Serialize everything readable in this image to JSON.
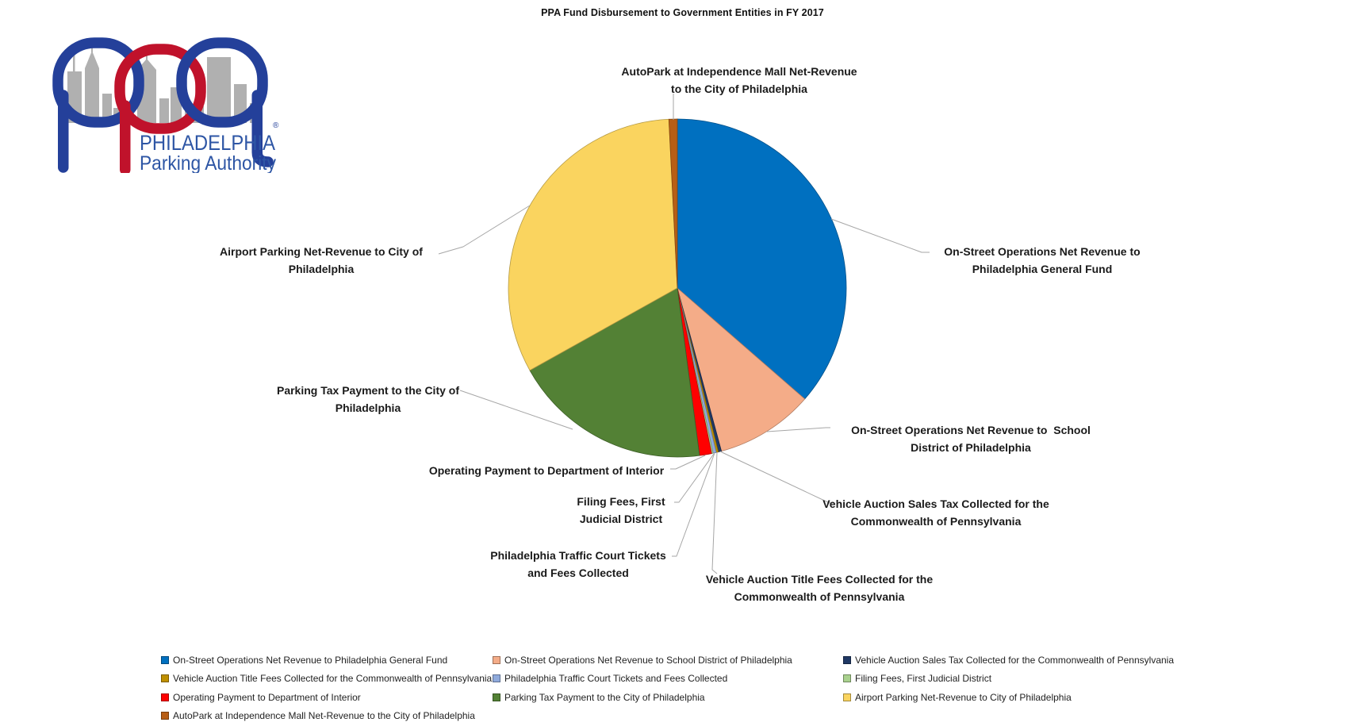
{
  "title": "PPA Fund Disbursement to Government Entities in FY 2017",
  "logo": {
    "org_name_line1": "PHILADELPHIA",
    "org_name_line2": "Parking Authority",
    "registered_mark": "®",
    "colors": {
      "loop_blue": "#24409A",
      "loop_red": "#C0122B",
      "skyline_gray": "#B0B0B0",
      "text_blue": "#2E56A5"
    }
  },
  "chart_data": {
    "type": "pie",
    "title": "PPA Fund Disbursement to Government Entities in FY 2017",
    "legend_position": "bottom",
    "values_unit": "percent-of-total (estimated from slice angles)",
    "slices": [
      {
        "label": "On-Street Operations Net Revenue to Philadelphia General Fund",
        "value": 36.4,
        "color": "#0070C0",
        "callout": [
          "On-Street Operations Net Revenue to",
          "Philadelphia General Fund"
        ]
      },
      {
        "label": "On-Street Operations Net Revenue to  School District of Philadelphia",
        "value": 9.4,
        "color": "#F4AC88",
        "callout": [
          "On-Street Operations Net Revenue to  School",
          "District of Philadelphia"
        ]
      },
      {
        "label": "Vehicle Auction Sales Tax Collected for the Commonwealth of Pennsylvania",
        "value": 0.3,
        "color": "#1F3864",
        "callout": [
          "Vehicle Auction Sales Tax Collected for the",
          "Commonwealth of Pennsylvania"
        ]
      },
      {
        "label": "Vehicle Auction Title Fees Collected for the Commonwealth of Pennsylvania",
        "value": 0.2,
        "color": "#BF9000",
        "callout": [
          "Vehicle Auction Title Fees Collected for the",
          "Commonwealth of Pennsylvania"
        ]
      },
      {
        "label": "Philadelphia Traffic Court Tickets and Fees Collected",
        "value": 0.3,
        "color": "#8FAADC",
        "callout": [
          "Philadelphia Traffic Court Tickets",
          "and Fees Collected"
        ]
      },
      {
        "label": "Filing Fees, First Judicial District",
        "value": 0.15,
        "color": "#A9D18E",
        "callout": [
          "Filing Fees, First",
          "Judicial District"
        ]
      },
      {
        "label": "Operating Payment to Department of Interior",
        "value": 1.15,
        "color": "#FF0000",
        "callout": [
          "Operating Payment to Department of Interior"
        ]
      },
      {
        "label": "Parking Tax Payment to the City of Philadelphia",
        "value": 19.0,
        "color": "#538135",
        "callout": [
          "Parking Tax Payment to the City of",
          "Philadelphia"
        ]
      },
      {
        "label": "Airport Parking Net-Revenue to City of Philadelphia",
        "value": 32.3,
        "color": "#FAD45F",
        "callout": [
          "Airport Parking Net-Revenue to City of",
          "Philadelphia"
        ]
      },
      {
        "label": "AutoPark at Independence Mall Net-Revenue to the City of Philadelphia",
        "value": 0.8,
        "color": "#B85E15",
        "callout": [
          "AutoPark at Independence Mall Net-Revenue",
          "to the City of Philadelphia"
        ]
      }
    ],
    "legend_columns": [
      [
        0,
        3,
        6,
        9
      ],
      [
        1,
        4,
        7
      ],
      [
        2,
        5,
        8
      ]
    ]
  }
}
